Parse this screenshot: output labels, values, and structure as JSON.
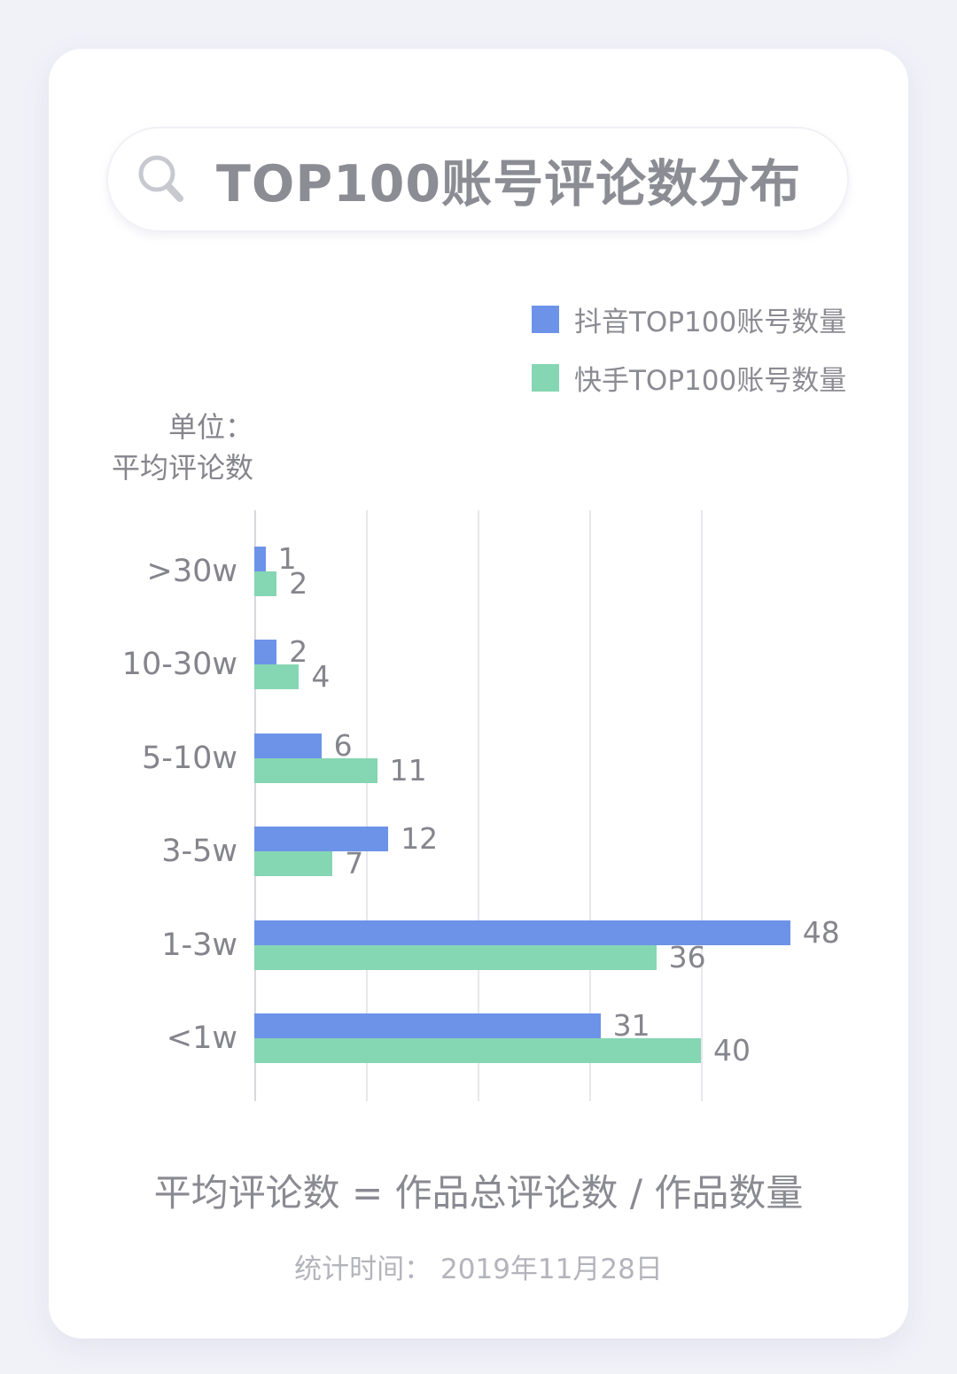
{
  "title": "TOP100账号评论数分布",
  "search_icon": "magnifier",
  "legend": [
    {
      "label": "抖音TOP100账号数量",
      "color": "#6d93e9"
    },
    {
      "label": "快手TOP100账号数量",
      "color": "#85d6b3"
    }
  ],
  "unit": {
    "line1": "单位：",
    "line2": "平均评论数"
  },
  "chart_data": {
    "type": "bar",
    "orientation": "horizontal",
    "title": "TOP100账号评论数分布",
    "xlabel": "",
    "ylabel": "平均评论数",
    "categories": [
      ">30w",
      "10-30w",
      "5-10w",
      "3-5w",
      "1-3w",
      "<1w"
    ],
    "series": [
      {
        "name": "抖音TOP100账号数量",
        "color": "#6d93e9",
        "values": [
          1,
          2,
          6,
          12,
          48,
          31
        ]
      },
      {
        "name": "快手TOP100账号数量",
        "color": "#85d6b3",
        "values": [
          2,
          4,
          11,
          7,
          36,
          40
        ]
      }
    ],
    "xlim": [
      0,
      52
    ],
    "gridlines": [
      0,
      10,
      20,
      30,
      40
    ],
    "grid": true,
    "legend_position": "top-right",
    "value_labels": true
  },
  "footer": {
    "formula": "平均评论数 = 作品总评论数 / 作品数量",
    "stat_time": "统计时间： 2019年11月28日"
  },
  "colors": {
    "page_bg": "#f1f1f8",
    "card_bg": "#ffffff",
    "douyin_blue": "#6d93e9",
    "kuaishou_green": "#85d6b3",
    "text_gray": "#85858d",
    "light_gray": "#b4b4bc",
    "gridline": "#e7e7ec"
  }
}
